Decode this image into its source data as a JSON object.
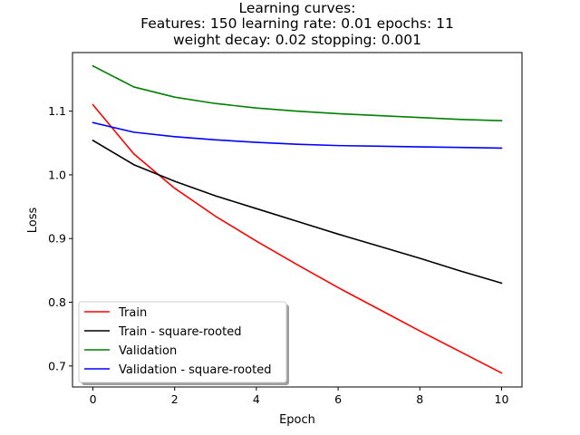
{
  "chart_data": {
    "type": "line",
    "title_lines": [
      "Learning curves:",
      "Features: 150 learning rate: 0.01 epochs: 11",
      "weight decay: 0.02 stopping: 0.001"
    ],
    "xlabel": "Epoch",
    "ylabel": "Loss",
    "xlim": [
      -0.5,
      10.5
    ],
    "ylim": [
      0.667,
      1.192
    ],
    "xticks": [
      0,
      2,
      4,
      6,
      8,
      10
    ],
    "xtick_labels": [
      "0",
      "2",
      "4",
      "6",
      "8",
      "10"
    ],
    "yticks": [
      0.7,
      0.8,
      0.9,
      1.0,
      1.1
    ],
    "ytick_labels": [
      "0.7",
      "0.8",
      "0.9",
      "1.0",
      "1.1"
    ],
    "grid": false,
    "legend_position": "lower-left",
    "x": [
      0,
      1,
      2,
      3,
      4,
      5,
      6,
      7,
      8,
      9,
      10
    ],
    "series": [
      {
        "name": "Train",
        "color": "#ff0000",
        "values": [
          1.11,
          1.033,
          0.979,
          0.935,
          0.896,
          0.859,
          0.823,
          0.789,
          0.755,
          0.722,
          0.689
        ]
      },
      {
        "name": "Train - square-rooted",
        "color": "#000000",
        "values": [
          1.054,
          1.016,
          0.99,
          0.967,
          0.947,
          0.927,
          0.907,
          0.888,
          0.869,
          0.849,
          0.83
        ]
      },
      {
        "name": "Validation",
        "color": "#008000",
        "values": [
          1.171,
          1.138,
          1.122,
          1.112,
          1.105,
          1.1,
          1.096,
          1.093,
          1.09,
          1.087,
          1.085
        ]
      },
      {
        "name": "Validation - square-rooted",
        "color": "#0000ff",
        "values": [
          1.082,
          1.067,
          1.06,
          1.055,
          1.051,
          1.048,
          1.046,
          1.045,
          1.044,
          1.043,
          1.042
        ]
      }
    ]
  }
}
